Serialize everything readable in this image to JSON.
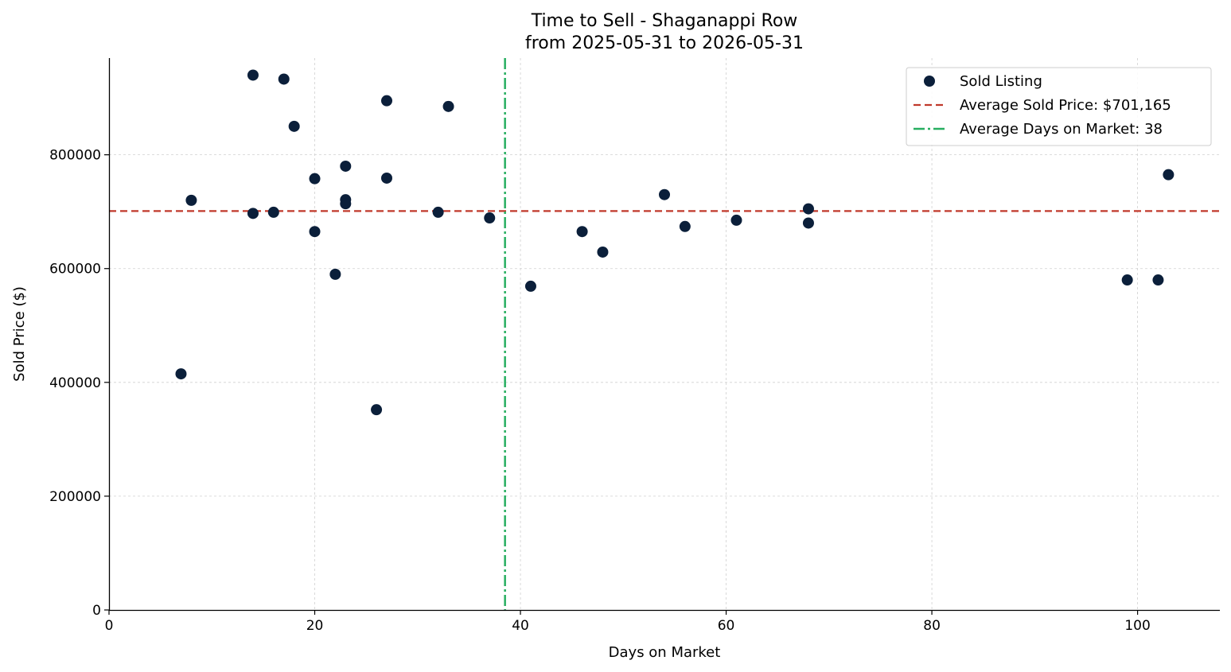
{
  "chart_data": {
    "type": "scatter",
    "title": "Time to Sell - Shaganappi Row",
    "subtitle": "from 2025-05-31 to 2026-05-31",
    "xlabel": "Days on Market",
    "ylabel": "Sold Price ($)",
    "xlim": [
      0,
      108
    ],
    "ylim": [
      0,
      970000
    ],
    "xticks": [
      0,
      20,
      40,
      60,
      80,
      100
    ],
    "yticks": [
      0,
      200000,
      400000,
      600000,
      800000
    ],
    "grid": true,
    "legend_position": "top-right",
    "series": [
      {
        "name": "Sold Listing",
        "type": "scatter",
        "color": "#0b1f3a",
        "points": [
          {
            "x": 7,
            "y": 415000
          },
          {
            "x": 8,
            "y": 720000
          },
          {
            "x": 14,
            "y": 940000
          },
          {
            "x": 14,
            "y": 697000
          },
          {
            "x": 16,
            "y": 699000
          },
          {
            "x": 17,
            "y": 933000
          },
          {
            "x": 18,
            "y": 850000
          },
          {
            "x": 20,
            "y": 758000
          },
          {
            "x": 20,
            "y": 665000
          },
          {
            "x": 22,
            "y": 590000
          },
          {
            "x": 23,
            "y": 780000
          },
          {
            "x": 23,
            "y": 721000
          },
          {
            "x": 23,
            "y": 714000
          },
          {
            "x": 26,
            "y": 352000
          },
          {
            "x": 27,
            "y": 895000
          },
          {
            "x": 27,
            "y": 759000
          },
          {
            "x": 32,
            "y": 699000
          },
          {
            "x": 33,
            "y": 885000
          },
          {
            "x": 37,
            "y": 689000
          },
          {
            "x": 41,
            "y": 569000
          },
          {
            "x": 46,
            "y": 665000
          },
          {
            "x": 48,
            "y": 629000
          },
          {
            "x": 54,
            "y": 730000
          },
          {
            "x": 56,
            "y": 674000
          },
          {
            "x": 61,
            "y": 685000
          },
          {
            "x": 68,
            "y": 705000
          },
          {
            "x": 68,
            "y": 680000
          },
          {
            "x": 99,
            "y": 580000
          },
          {
            "x": 102,
            "y": 580000
          },
          {
            "x": 103,
            "y": 765000
          }
        ]
      },
      {
        "name": "Average Sold Price: $701,165",
        "type": "hline",
        "y": 701165,
        "color": "#c0392b",
        "style": "dashed"
      },
      {
        "name": "Average Days on Market: 38",
        "type": "vline",
        "x": 38.5,
        "color": "#27ae60",
        "style": "dash-dot"
      }
    ]
  }
}
